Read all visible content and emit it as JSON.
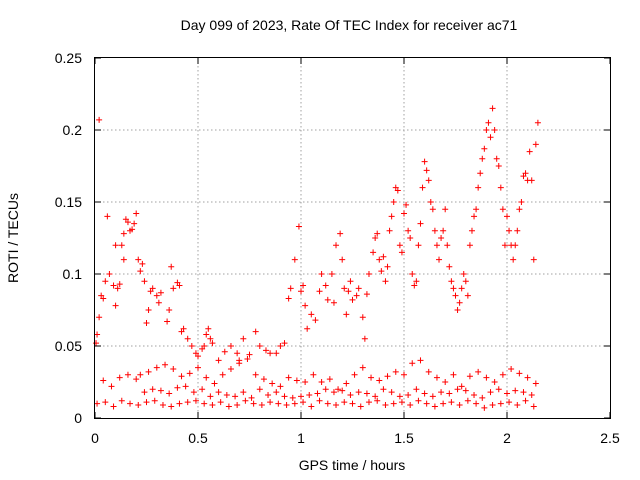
{
  "chart_data": {
    "type": "scatter",
    "title": "Day 099 of 2023, Rate Of TEC Index for receiver ac71",
    "xlabel": "GPS time / hours",
    "ylabel": "ROTI / TECUs",
    "xlim": [
      0,
      2.5
    ],
    "ylim": [
      0,
      0.25
    ],
    "xticks": [
      0,
      0.5,
      1,
      1.5,
      2,
      2.5
    ],
    "yticks": [
      0,
      0.05,
      0.1,
      0.15,
      0.2,
      0.25
    ],
    "xtick_labels": [
      "0",
      "0.5",
      "1",
      "1.5",
      "2",
      "2.5"
    ],
    "ytick_labels": [
      "0",
      "0.05",
      "0.1",
      "0.15",
      "0.2",
      "0.25"
    ],
    "grid": true,
    "marker": "plus",
    "color": "#ff0000",
    "series": [
      {
        "x": [
          0.005,
          0.01,
          0.02,
          0.03,
          0.04,
          0.05,
          0.07,
          0.09,
          0.1,
          0.11,
          0.12,
          0.13,
          0.14,
          0.15,
          0.16,
          0.17,
          0.19,
          0.2,
          0.21,
          0.22,
          0.23,
          0.24,
          0.25,
          0.26,
          0.27,
          0.28,
          0.3,
          0.31,
          0.32,
          0.35,
          0.36,
          0.37,
          0.38,
          0.4,
          0.41,
          0.42,
          0.43,
          0.45,
          0.47,
          0.49,
          0.5,
          0.52,
          0.53,
          0.54,
          0.55,
          0.56,
          0.57,
          0.6,
          0.63,
          0.66,
          0.69,
          0.7,
          0.72,
          0.75,
          0.78,
          0.8,
          0.83,
          0.85,
          0.88,
          0.9,
          0.92,
          0.94,
          0.95,
          0.97,
          0.99,
          1.0,
          1.01,
          1.02,
          1.03,
          1.05,
          1.07,
          1.09,
          1.1,
          1.12,
          1.13,
          1.15,
          1.16,
          1.17,
          1.19,
          1.2,
          1.21,
          1.22,
          1.23,
          1.24,
          1.25,
          1.27,
          1.28,
          1.3,
          1.31,
          1.32,
          1.33,
          1.35,
          1.36,
          1.37,
          1.38,
          1.39,
          1.4,
          1.41,
          1.42,
          1.43,
          1.44,
          1.45,
          1.46,
          1.47,
          1.48,
          1.49,
          1.5,
          1.51,
          1.52,
          1.53,
          1.54,
          1.55,
          1.56,
          1.57,
          1.58,
          1.59,
          1.6,
          1.61,
          1.62,
          1.63,
          1.64,
          1.65,
          1.66,
          1.67,
          1.68,
          1.69,
          1.7,
          1.71,
          1.72,
          1.73,
          1.74,
          1.75,
          1.76,
          1.77,
          1.78,
          1.79,
          1.8,
          1.81,
          1.82,
          1.83,
          1.84,
          1.85,
          1.86,
          1.87,
          1.88,
          1.89,
          1.9,
          1.91,
          1.92,
          1.93,
          1.94,
          1.95,
          1.96,
          1.97,
          1.98,
          1.99,
          2.0,
          2.01,
          2.02,
          2.03,
          2.04,
          2.05,
          2.06,
          2.07,
          2.08,
          2.09,
          2.1,
          2.11,
          2.12,
          2.13,
          2.14,
          2.15,
          0.02,
          0.06,
          0.1,
          0.14,
          0.18,
          0.22,
          0.26,
          0.3,
          0.34,
          0.38,
          0.42,
          0.46,
          0.5,
          0.54,
          0.58,
          0.62,
          0.66,
          0.7,
          0.74,
          0.78,
          0.82,
          0.86,
          0.9,
          0.94,
          0.98,
          1.02,
          1.06,
          1.1,
          1.14,
          1.18,
          1.22,
          1.26,
          1.3,
          1.34,
          1.38,
          1.42,
          1.46,
          1.5,
          1.54,
          1.58,
          1.62,
          1.66,
          1.7,
          1.74,
          1.78,
          1.82,
          1.86,
          1.9,
          1.94,
          1.98,
          2.02,
          2.06,
          2.1,
          2.14,
          0.04,
          0.08,
          0.12,
          0.16,
          0.2,
          0.24,
          0.28,
          0.32,
          0.36,
          0.4,
          0.44,
          0.48,
          0.52,
          0.56,
          0.6,
          0.64,
          0.68,
          0.72,
          0.76,
          0.8,
          0.84,
          0.88,
          0.92,
          0.96,
          1.0,
          1.04,
          1.08,
          1.12,
          1.16,
          1.2,
          1.24,
          1.28,
          1.32,
          1.36,
          1.4,
          1.44,
          1.48,
          1.52,
          1.56,
          1.6,
          1.64,
          1.68,
          1.72,
          1.76,
          1.8,
          1.84,
          1.88,
          1.92,
          1.96,
          2.0,
          2.04,
          2.08,
          2.12,
          0.01,
          0.05,
          0.09,
          0.13,
          0.17,
          0.21,
          0.25,
          0.29,
          0.33,
          0.37,
          0.41,
          0.45,
          0.49,
          0.53,
          0.57,
          0.61,
          0.65,
          0.69,
          0.73,
          0.77,
          0.81,
          0.85,
          0.89,
          0.93,
          0.97,
          1.01,
          1.05,
          1.09,
          1.13,
          1.17,
          1.21,
          1.25,
          1.29,
          1.33,
          1.37,
          1.41,
          1.45,
          1.49,
          1.53,
          1.57,
          1.61,
          1.65,
          1.69,
          1.73,
          1.77,
          1.81,
          1.85,
          1.89,
          1.93,
          1.97,
          2.01,
          2.05,
          2.09,
          2.13
        ],
        "y": [
          0.052,
          0.058,
          0.07,
          0.085,
          0.083,
          0.095,
          0.1,
          0.092,
          0.078,
          0.09,
          0.093,
          0.12,
          0.128,
          0.138,
          0.136,
          0.13,
          0.135,
          0.142,
          0.11,
          0.102,
          0.107,
          0.095,
          0.066,
          0.075,
          0.088,
          0.09,
          0.085,
          0.08,
          0.087,
          0.067,
          0.075,
          0.105,
          0.09,
          0.094,
          0.092,
          0.06,
          0.062,
          0.055,
          0.05,
          0.045,
          0.043,
          0.048,
          0.05,
          0.058,
          0.062,
          0.055,
          0.052,
          0.04,
          0.046,
          0.05,
          0.045,
          0.04,
          0.055,
          0.044,
          0.06,
          0.05,
          0.047,
          0.045,
          0.045,
          0.05,
          0.052,
          0.083,
          0.09,
          0.11,
          0.133,
          0.088,
          0.092,
          0.078,
          0.062,
          0.072,
          0.068,
          0.088,
          0.1,
          0.092,
          0.082,
          0.1,
          0.08,
          0.12,
          0.128,
          0.11,
          0.09,
          0.072,
          0.088,
          0.095,
          0.082,
          0.085,
          0.09,
          0.07,
          0.055,
          0.086,
          0.1,
          0.115,
          0.125,
          0.128,
          0.11,
          0.102,
          0.112,
          0.095,
          0.105,
          0.13,
          0.14,
          0.15,
          0.16,
          0.158,
          0.12,
          0.115,
          0.142,
          0.148,
          0.13,
          0.125,
          0.1,
          0.092,
          0.095,
          0.12,
          0.135,
          0.16,
          0.178,
          0.172,
          0.165,
          0.15,
          0.145,
          0.13,
          0.12,
          0.11,
          0.125,
          0.13,
          0.145,
          0.12,
          0.105,
          0.095,
          0.09,
          0.085,
          0.075,
          0.08,
          0.09,
          0.1,
          0.095,
          0.085,
          0.12,
          0.13,
          0.14,
          0.145,
          0.16,
          0.17,
          0.18,
          0.187,
          0.2,
          0.205,
          0.195,
          0.215,
          0.2,
          0.18,
          0.175,
          0.16,
          0.145,
          0.12,
          0.14,
          0.13,
          0.12,
          0.11,
          0.12,
          0.13,
          0.145,
          0.15,
          0.168,
          0.17,
          0.165,
          0.185,
          0.165,
          0.11,
          0.19,
          0.205,
          0.207,
          0.14,
          0.12,
          0.11,
          0.131,
          0.03,
          0.032,
          0.035,
          0.037,
          0.034,
          0.029,
          0.031,
          0.035,
          0.028,
          0.024,
          0.03,
          0.034,
          0.038,
          0.041,
          0.03,
          0.027,
          0.024,
          0.022,
          0.028,
          0.026,
          0.025,
          0.03,
          0.025,
          0.027,
          0.02,
          0.024,
          0.03,
          0.035,
          0.028,
          0.026,
          0.029,
          0.032,
          0.03,
          0.038,
          0.04,
          0.032,
          0.028,
          0.025,
          0.03,
          0.022,
          0.029,
          0.032,
          0.028,
          0.025,
          0.03,
          0.034,
          0.031,
          0.028,
          0.024,
          0.026,
          0.022,
          0.028,
          0.03,
          0.027,
          0.018,
          0.02,
          0.019,
          0.017,
          0.021,
          0.022,
          0.018,
          0.02,
          0.015,
          0.018,
          0.016,
          0.015,
          0.018,
          0.014,
          0.02,
          0.016,
          0.018,
          0.015,
          0.014,
          0.015,
          0.016,
          0.017,
          0.02,
          0.018,
          0.019,
          0.016,
          0.018,
          0.017,
          0.015,
          0.02,
          0.018,
          0.015,
          0.016,
          0.02,
          0.017,
          0.015,
          0.018,
          0.017,
          0.02,
          0.019,
          0.016,
          0.014,
          0.018,
          0.02,
          0.017,
          0.019,
          0.018,
          0.016,
          0.01,
          0.011,
          0.008,
          0.012,
          0.01,
          0.009,
          0.011,
          0.012,
          0.009,
          0.008,
          0.01,
          0.011,
          0.012,
          0.01,
          0.009,
          0.011,
          0.008,
          0.009,
          0.012,
          0.01,
          0.009,
          0.011,
          0.01,
          0.009,
          0.01,
          0.011,
          0.008,
          0.012,
          0.01,
          0.009,
          0.011,
          0.01,
          0.008,
          0.011,
          0.012,
          0.009,
          0.01,
          0.011,
          0.009,
          0.012,
          0.01,
          0.008,
          0.01,
          0.011,
          0.009,
          0.012,
          0.01,
          0.007,
          0.009,
          0.01,
          0.011,
          0.009,
          0.012,
          0.008
        ]
      }
    ]
  }
}
